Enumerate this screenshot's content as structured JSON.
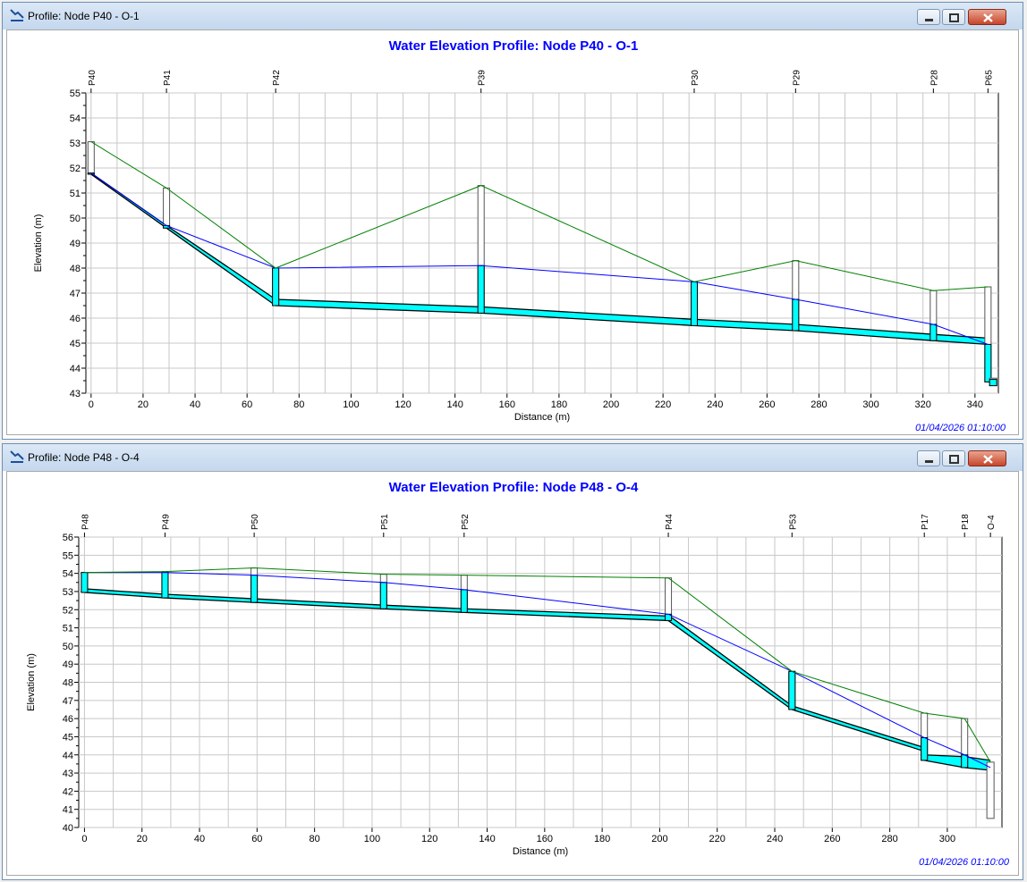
{
  "windows": [
    {
      "title": "Profile: Node P40 - O-1",
      "chart_data": {
        "type": "line",
        "title": "Water Elevation Profile: Node P40 - O-1",
        "xlabel": "Distance (m)",
        "ylabel": "Elevation (m)",
        "xlim": [
          -2,
          349
        ],
        "ylim": [
          43,
          55
        ],
        "x_ticks": [
          0,
          20,
          40,
          60,
          80,
          100,
          120,
          140,
          160,
          180,
          200,
          220,
          240,
          260,
          280,
          300,
          320,
          340
        ],
        "y_ticks": [
          43,
          44,
          45,
          46,
          47,
          48,
          49,
          50,
          51,
          52,
          53,
          54,
          55
        ],
        "timestamp": "01/04/2026 01:10:00",
        "nodes": [
          {
            "name": "P40",
            "x": 0,
            "invert": 51.75,
            "ground": 53.05,
            "hgl": 51.8,
            "crown": 51.8
          },
          {
            "name": "P41",
            "x": 29,
            "invert": 49.6,
            "ground": 51.2,
            "hgl": 49.7,
            "crown": 49.7
          },
          {
            "name": "P42",
            "x": 71,
            "invert": 46.5,
            "ground": 48.0,
            "hgl": 48.0,
            "crown": 46.7
          },
          {
            "name": "P39",
            "x": 150,
            "invert": 46.2,
            "ground": 51.3,
            "hgl": 48.1,
            "crown": 46.4
          },
          {
            "name": "P30",
            "x": 232,
            "invert": 45.7,
            "ground": 47.45,
            "hgl": 47.45,
            "crown": 45.9
          },
          {
            "name": "P29",
            "x": 271,
            "invert": 45.5,
            "ground": 48.3,
            "hgl": 46.75,
            "crown": 45.7
          },
          {
            "name": "P28",
            "x": 324,
            "invert": 45.1,
            "ground": 47.1,
            "hgl": 45.75,
            "crown": 45.3
          },
          {
            "name": "P65",
            "x": 345,
            "invert": 43.45,
            "ground": 47.25,
            "hgl": 44.95,
            "crown": 43.6
          }
        ],
        "outlet": {
          "name": "O-1",
          "x": 347,
          "invert": 43.3,
          "ground": 43.6
        },
        "links": [
          {
            "from": 0,
            "to": 1,
            "invert": [
              51.75,
              49.6
            ],
            "crown": [
              51.8,
              49.7
            ]
          },
          {
            "from": 1,
            "to": 2,
            "invert": [
              49.6,
              46.5
            ],
            "crown": [
              49.7,
              46.75
            ]
          },
          {
            "from": 2,
            "to": 3,
            "invert": [
              46.5,
              46.2
            ],
            "crown": [
              46.75,
              46.45
            ]
          },
          {
            "from": 3,
            "to": 4,
            "invert": [
              46.2,
              45.7
            ],
            "crown": [
              46.45,
              45.95
            ]
          },
          {
            "from": 4,
            "to": 5,
            "invert": [
              45.7,
              45.5
            ],
            "crown": [
              45.95,
              45.75
            ]
          },
          {
            "from": 5,
            "to": 6,
            "invert": [
              45.5,
              45.1
            ],
            "crown": [
              45.75,
              45.35
            ]
          },
          {
            "from": 6,
            "to": 7,
            "invert": [
              45.1,
              44.95
            ],
            "crown": [
              45.35,
              45.2
            ]
          }
        ],
        "hgl_line": [
          [
            0,
            51.8
          ],
          [
            29,
            49.7
          ],
          [
            71,
            48.0
          ],
          [
            150,
            48.1
          ],
          [
            232,
            47.45
          ],
          [
            271,
            46.75
          ],
          [
            324,
            45.75
          ],
          [
            345,
            44.95
          ]
        ],
        "ground_line": [
          [
            0,
            53.05
          ],
          [
            29,
            51.2
          ],
          [
            71,
            48.0
          ],
          [
            150,
            51.3
          ],
          [
            232,
            47.45
          ],
          [
            271,
            48.3
          ],
          [
            324,
            47.1
          ],
          [
            345,
            47.25
          ]
        ],
        "colors": {
          "water": "#00ffff",
          "hgl": "#0000ff",
          "ground": "#008000",
          "pipe": "#000000",
          "grid": "#c8c8c8",
          "title": "#0000ff",
          "timestamp": "#0000ff"
        }
      }
    },
    {
      "title": "Profile: Node P48 - O-4",
      "chart_data": {
        "type": "line",
        "title": "Water Elevation Profile: Node P48 - O-4",
        "xlabel": "Distance (m)",
        "ylabel": "Elevation (m)",
        "xlim": [
          -2,
          319
        ],
        "ylim": [
          40,
          56
        ],
        "x_ticks": [
          0,
          20,
          40,
          60,
          80,
          100,
          120,
          140,
          160,
          180,
          200,
          220,
          240,
          260,
          280,
          300
        ],
        "y_ticks": [
          40,
          41,
          42,
          43,
          44,
          45,
          46,
          47,
          48,
          49,
          50,
          51,
          52,
          53,
          54,
          55,
          56
        ],
        "timestamp": "01/04/2026 01:10:00",
        "nodes": [
          {
            "name": "P48",
            "x": 0,
            "invert": 52.95,
            "ground": 54.05,
            "hgl": 54.05
          },
          {
            "name": "P49",
            "x": 28,
            "invert": 52.65,
            "ground": 54.1,
            "hgl": 54.05
          },
          {
            "name": "P50",
            "x": 59,
            "invert": 52.4,
            "ground": 54.3,
            "hgl": 53.9
          },
          {
            "name": "P51",
            "x": 104,
            "invert": 52.05,
            "ground": 53.95,
            "hgl": 53.5
          },
          {
            "name": "P52",
            "x": 132,
            "invert": 51.85,
            "ground": 53.9,
            "hgl": 53.1
          },
          {
            "name": "P44",
            "x": 203,
            "invert": 51.4,
            "ground": 53.75,
            "hgl": 51.75
          },
          {
            "name": "P53",
            "x": 246,
            "invert": 46.5,
            "ground": 48.6,
            "hgl": 48.6
          },
          {
            "name": "P17",
            "x": 292,
            "invert": 43.7,
            "ground": 46.3,
            "hgl": 44.95
          },
          {
            "name": "P18",
            "x": 306,
            "invert": 43.3,
            "ground": 46.0,
            "hgl": 44.0
          }
        ],
        "outlet": {
          "name": "O-4",
          "x": 315,
          "invert": 40.5,
          "ground": 43.6
        },
        "links": [
          {
            "from": 0,
            "to": 1,
            "invert": [
              52.95,
              52.65
            ],
            "crown": [
              53.15,
              52.85
            ]
          },
          {
            "from": 1,
            "to": 2,
            "invert": [
              52.65,
              52.4
            ],
            "crown": [
              52.85,
              52.6
            ]
          },
          {
            "from": 2,
            "to": 3,
            "invert": [
              52.4,
              52.05
            ],
            "crown": [
              52.6,
              52.25
            ]
          },
          {
            "from": 3,
            "to": 4,
            "invert": [
              52.05,
              51.85
            ],
            "crown": [
              52.25,
              52.05
            ]
          },
          {
            "from": 4,
            "to": 5,
            "invert": [
              51.85,
              51.4
            ],
            "crown": [
              52.05,
              51.65
            ]
          },
          {
            "from": 5,
            "to": 6,
            "invert": [
              51.4,
              46.5
            ],
            "crown": [
              51.7,
              46.7
            ]
          },
          {
            "from": 6,
            "to": 7,
            "invert": [
              46.5,
              44.2
            ],
            "crown": [
              46.7,
              44.4
            ]
          },
          {
            "from": 7,
            "to": 8,
            "invert": [
              43.7,
              43.3
            ],
            "crown": [
              44.0,
              43.9
            ]
          },
          {
            "from": 8,
            "to": 9,
            "invert": [
              43.3,
              43.15
            ],
            "crown": [
              43.9,
              43.7
            ]
          }
        ],
        "hgl_line": [
          [
            0,
            54.05
          ],
          [
            28,
            54.05
          ],
          [
            59,
            53.9
          ],
          [
            104,
            53.5
          ],
          [
            132,
            53.1
          ],
          [
            203,
            51.75
          ],
          [
            246,
            48.6
          ],
          [
            292,
            44.95
          ],
          [
            306,
            44.0
          ],
          [
            315,
            43.3
          ]
        ],
        "ground_line": [
          [
            0,
            54.05
          ],
          [
            28,
            54.1
          ],
          [
            59,
            54.3
          ],
          [
            104,
            53.95
          ],
          [
            132,
            53.9
          ],
          [
            203,
            53.75
          ],
          [
            246,
            48.6
          ],
          [
            292,
            46.3
          ],
          [
            306,
            46.0
          ],
          [
            315,
            43.6
          ]
        ],
        "colors": {
          "water": "#00ffff",
          "hgl": "#0000ff",
          "ground": "#008000",
          "pipe": "#000000",
          "grid": "#c8c8c8",
          "title": "#0000ff",
          "timestamp": "#0000ff"
        }
      }
    }
  ],
  "icons": {
    "window": "profile-icon",
    "minimize": "minimize-icon",
    "maximize": "maximize-icon",
    "close": "close-icon"
  }
}
